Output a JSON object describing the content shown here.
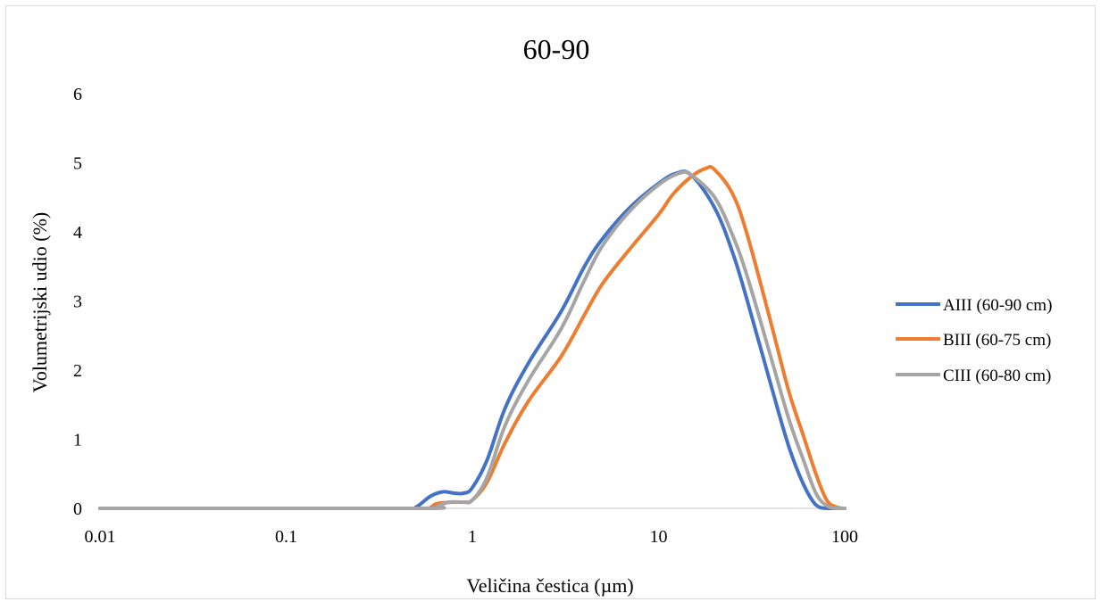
{
  "chart_data": {
    "type": "line",
    "title": "60-90",
    "xlabel": "Veličina čestica (µm)",
    "ylabel": "Volumetrijski udio (%)",
    "x_scale": "log",
    "xlim": [
      0.01,
      100
    ],
    "ylim": [
      0,
      6
    ],
    "x_ticks": [
      "0.01",
      "0.1",
      "1",
      "10",
      "100"
    ],
    "y_ticks": [
      "0",
      "1",
      "2",
      "3",
      "4",
      "5",
      "6"
    ],
    "grid": false,
    "legend_position": "right",
    "series": [
      {
        "name": "AIII (60-90 cm)",
        "color": "#4472C4",
        "points": [
          [
            0.01,
            0
          ],
          [
            0.1,
            0
          ],
          [
            0.45,
            0
          ],
          [
            0.5,
            0.02
          ],
          [
            0.6,
            0.18
          ],
          [
            0.7,
            0.24
          ],
          [
            0.8,
            0.22
          ],
          [
            0.9,
            0.22
          ],
          [
            1.0,
            0.3
          ],
          [
            1.2,
            0.7
          ],
          [
            1.5,
            1.45
          ],
          [
            2.0,
            2.1
          ],
          [
            3.0,
            2.85
          ],
          [
            4.0,
            3.5
          ],
          [
            5.0,
            3.9
          ],
          [
            7.0,
            4.35
          ],
          [
            10.0,
            4.7
          ],
          [
            12.5,
            4.85
          ],
          [
            15.0,
            4.82
          ],
          [
            20.0,
            4.35
          ],
          [
            25.0,
            3.7
          ],
          [
            30.0,
            3.0
          ],
          [
            40.0,
            1.8
          ],
          [
            50.0,
            0.9
          ],
          [
            60.0,
            0.35
          ],
          [
            70.0,
            0.05
          ],
          [
            80.0,
            0
          ],
          [
            100.0,
            0
          ]
        ]
      },
      {
        "name": "BIII (60-75 cm)",
        "color": "#ED7D31",
        "points": [
          [
            0.01,
            0
          ],
          [
            0.1,
            0
          ],
          [
            0.55,
            0
          ],
          [
            0.6,
            0.02
          ],
          [
            0.65,
            0.07
          ],
          [
            0.8,
            0.09
          ],
          [
            0.9,
            0.09
          ],
          [
            1.0,
            0.12
          ],
          [
            1.2,
            0.38
          ],
          [
            1.5,
            0.95
          ],
          [
            2.0,
            1.55
          ],
          [
            3.0,
            2.2
          ],
          [
            4.0,
            2.8
          ],
          [
            5.0,
            3.25
          ],
          [
            7.0,
            3.75
          ],
          [
            10.0,
            4.25
          ],
          [
            12.0,
            4.55
          ],
          [
            15.0,
            4.8
          ],
          [
            18.0,
            4.92
          ],
          [
            20.0,
            4.9
          ],
          [
            25.0,
            4.55
          ],
          [
            30.0,
            3.95
          ],
          [
            40.0,
            2.7
          ],
          [
            50.0,
            1.7
          ],
          [
            60.0,
            1.05
          ],
          [
            70.0,
            0.5
          ],
          [
            80.0,
            0.12
          ],
          [
            90.0,
            0.02
          ],
          [
            100.0,
            0
          ]
        ]
      },
      {
        "name": "CIII (60-80 cm)",
        "color": "#A5A5A5",
        "points": [
          [
            0.01,
            0
          ],
          [
            0.1,
            0
          ],
          [
            0.6,
            0
          ],
          [
            0.65,
            0.03
          ],
          [
            0.75,
            0.09
          ],
          [
            0.9,
            0.09
          ],
          [
            1.0,
            0.12
          ],
          [
            1.2,
            0.45
          ],
          [
            1.5,
            1.2
          ],
          [
            2.0,
            1.85
          ],
          [
            3.0,
            2.6
          ],
          [
            4.0,
            3.3
          ],
          [
            5.0,
            3.8
          ],
          [
            7.0,
            4.3
          ],
          [
            10.0,
            4.68
          ],
          [
            13.0,
            4.85
          ],
          [
            15.0,
            4.82
          ],
          [
            20.0,
            4.5
          ],
          [
            25.0,
            3.95
          ],
          [
            30.0,
            3.35
          ],
          [
            40.0,
            2.2
          ],
          [
            50.0,
            1.3
          ],
          [
            60.0,
            0.7
          ],
          [
            70.0,
            0.22
          ],
          [
            80.0,
            0.04
          ],
          [
            90.0,
            0
          ],
          [
            100.0,
            0
          ]
        ]
      }
    ]
  }
}
